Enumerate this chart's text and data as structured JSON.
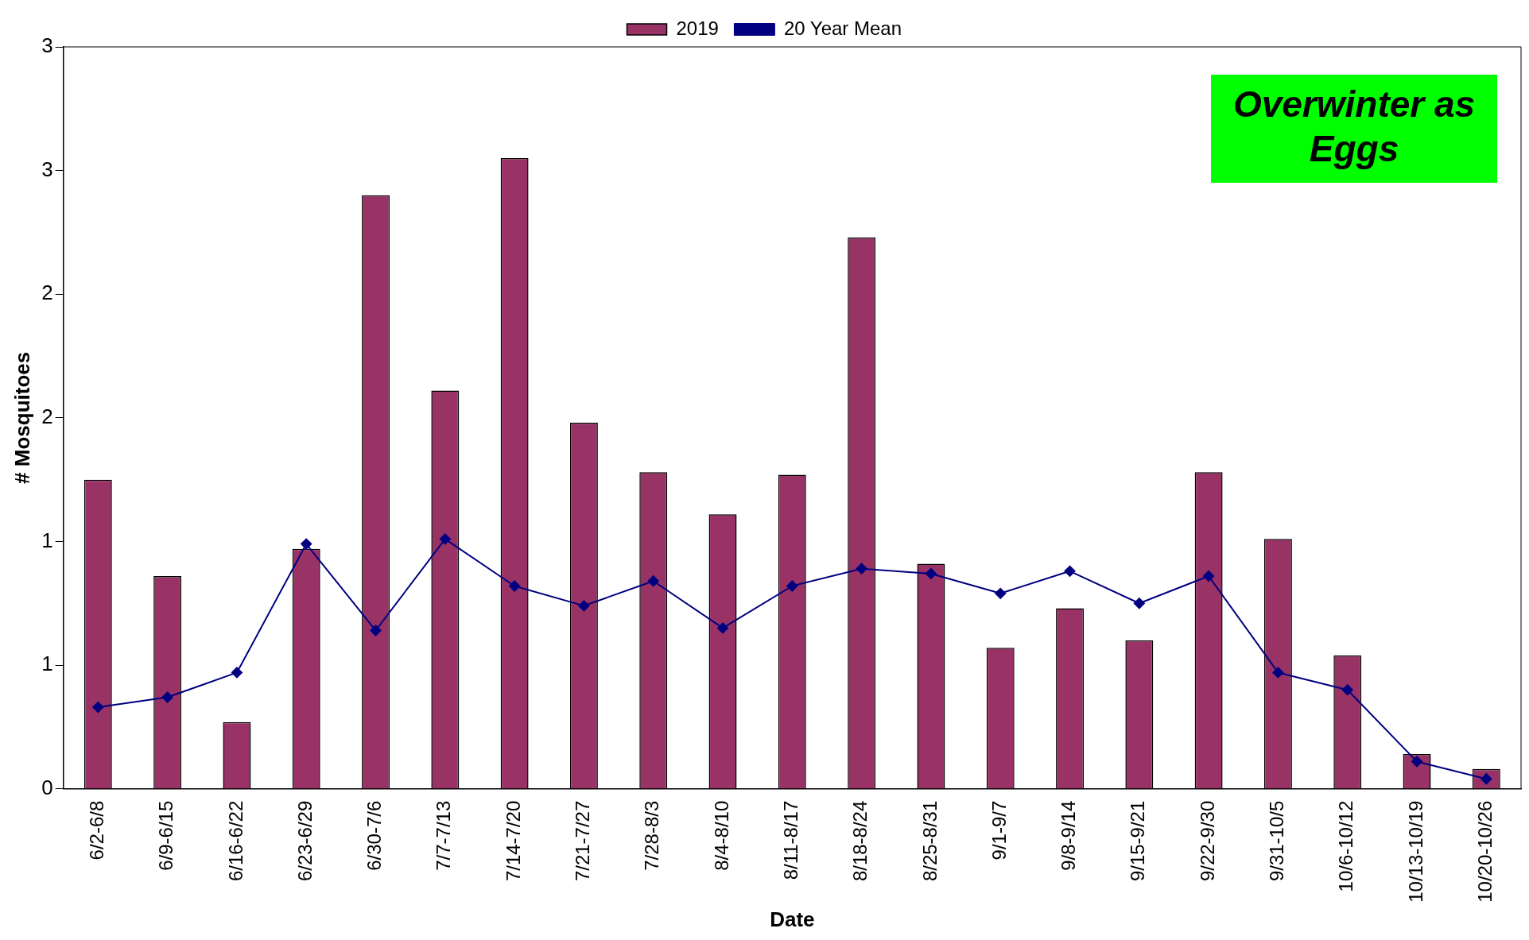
{
  "chart_data": {
    "type": "bar",
    "xlabel": "Date",
    "ylabel": "# Mosquitoes",
    "legend": "top",
    "categories": [
      "6/2-6/8",
      "6/9-6/15",
      "6/16-6/22",
      "6/23-6/29",
      "6/30-7/6",
      "7/7-7/13",
      "7/14-7/20",
      "7/21-7/27",
      "7/28-8/3",
      "8/4-8/10",
      "8/11-8/17",
      "8/18-8/24",
      "8/25-8/31",
      "9/1-9/7",
      "9/8-9/14",
      "9/15-9/21",
      "9/22-9/30",
      "9/31-10/5",
      "10/6-10/12",
      "10/13-10/19",
      "10/20-10/26"
    ],
    "ylim": [
      0,
      3
    ],
    "yticks": [
      0,
      {
        "value": 0.5,
        "label": "1"
      },
      1,
      {
        "value": 1.5,
        "label": "2"
      },
      2,
      {
        "value": 2.5,
        "label": "3"
      },
      3
    ],
    "annotations": [
      "Overwinter as Eggs"
    ],
    "series": [
      {
        "name": "2019",
        "color": "#993366",
        "values": [
          1.25,
          0.86,
          0.27,
          0.97,
          2.4,
          1.61,
          2.55,
          1.48,
          1.28,
          1.11,
          1.27,
          2.23,
          0.91,
          0.57,
          0.73,
          0.6,
          1.28,
          1.01,
          0.54,
          0.14,
          0.08
        ]
      },
      {
        "name": "20 Year Mean",
        "type": "line",
        "color": "#000080",
        "marker": "diamond",
        "values": [
          0.33,
          0.37,
          0.47,
          0.99,
          0.64,
          1.01,
          0.82,
          0.74,
          0.84,
          0.65,
          0.82,
          0.89,
          0.87,
          0.79,
          0.88,
          0.75,
          0.86,
          0.47,
          0.4,
          0.11,
          0.04
        ]
      }
    ]
  }
}
